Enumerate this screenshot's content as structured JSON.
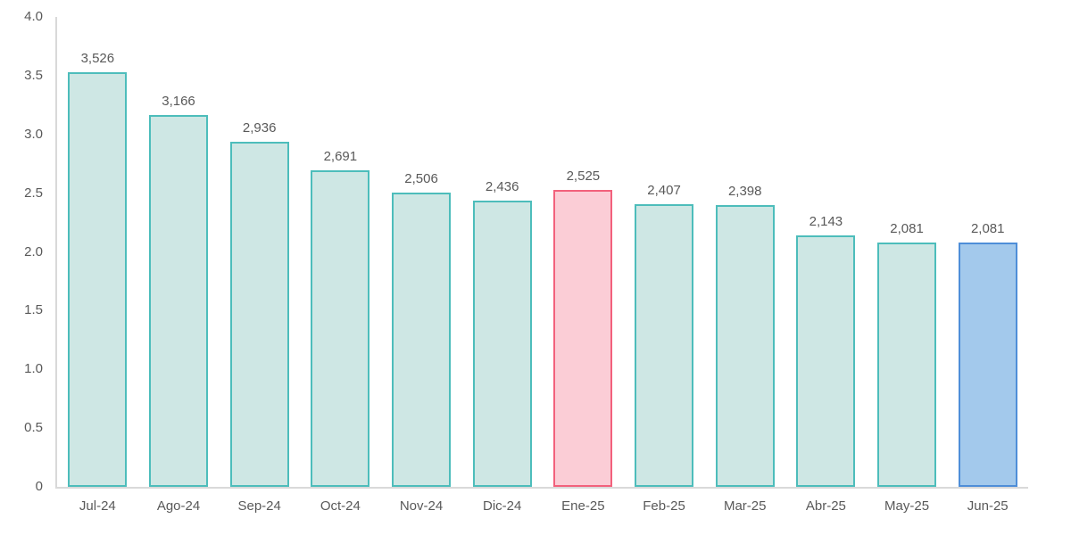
{
  "chart_data": {
    "type": "bar",
    "categories": [
      "Jul-24",
      "Ago-24",
      "Sep-24",
      "Oct-24",
      "Nov-24",
      "Dic-24",
      "Ene-25",
      "Feb-25",
      "Mar-25",
      "Abr-25",
      "May-25",
      "Jun-25"
    ],
    "values": [
      3526,
      3166,
      2936,
      2691,
      2506,
      2436,
      2525,
      2407,
      2398,
      2143,
      2081,
      2081
    ],
    "value_labels": [
      "3,526",
      "3,166",
      "2,936",
      "2,691",
      "2,506",
      "2,436",
      "2,525",
      "2,407",
      "2,398",
      "2,143",
      "2,081",
      "2,081"
    ],
    "bar_styles": [
      "teal",
      "teal",
      "teal",
      "teal",
      "teal",
      "teal",
      "pink",
      "teal",
      "teal",
      "teal",
      "teal",
      "blue"
    ],
    "styles": {
      "teal": {
        "fill": "#CEE7E4",
        "border": "#4DBDBB"
      },
      "pink": {
        "fill": "#FBCDD6",
        "border": "#F2617C"
      },
      "blue": {
        "fill": "#A3C9EC",
        "border": "#4E8ED8"
      }
    },
    "y_ticks": [
      "4.0",
      "3.5",
      "3.0",
      "2.5",
      "2.0",
      "1.5",
      "1.0",
      "0.5",
      "0"
    ],
    "ylim": [
      0,
      4.0
    ],
    "value_scale": 1000,
    "title": "",
    "xlabel": "",
    "ylabel": "",
    "grid": false,
    "legend": "none",
    "axis_color": "#D9D9D9",
    "label_color": "#595959"
  }
}
